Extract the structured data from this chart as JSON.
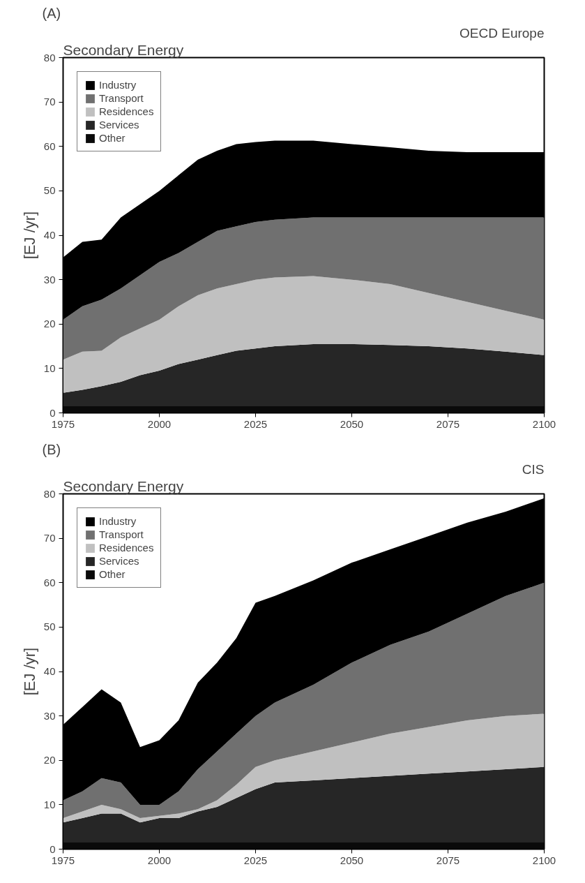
{
  "chart_data": [
    {
      "type": "area",
      "stacked": true,
      "title": "Secondary Energy",
      "subtitle": "OECD Europe",
      "annotations": [
        "(A)"
      ],
      "ylabel": "[EJ /yr]",
      "x": [
        1975,
        1980,
        1985,
        1990,
        1995,
        2000,
        2005,
        2010,
        2015,
        2020,
        2025,
        2030,
        2040,
        2050,
        2060,
        2070,
        2080,
        2090,
        2100
      ],
      "series": [
        {
          "name": "Other",
          "color": "#0a0a0a",
          "values": [
            1.5,
            1.5,
            1.5,
            1.5,
            1.5,
            1.5,
            1.5,
            1.5,
            1.5,
            1.5,
            1.5,
            1.5,
            1.5,
            1.5,
            1.5,
            1.5,
            1.5,
            1.5,
            1.5
          ]
        },
        {
          "name": "Services",
          "color": "#262626",
          "values": [
            3,
            3.7,
            4.5,
            5.5,
            7,
            8,
            9.5,
            10.5,
            11.5,
            12.5,
            13,
            13.5,
            14,
            14,
            13.8,
            13.5,
            13,
            12.3,
            11.5
          ]
        },
        {
          "name": "Residences",
          "color": "#c0c0c0",
          "values": [
            7.5,
            8.6,
            8,
            10,
            10.5,
            11.5,
            13,
            14.5,
            15,
            15,
            15.5,
            15.5,
            15.3,
            14.5,
            13.7,
            12,
            10.5,
            9.2,
            8
          ]
        },
        {
          "name": "Transport",
          "color": "#707070",
          "values": [
            9,
            10.2,
            11.5,
            11,
            12,
            13,
            12,
            12,
            13,
            13,
            13,
            13,
            13.2,
            14,
            15,
            17,
            19,
            21,
            23
          ]
        },
        {
          "name": "Industry",
          "color": "#000000",
          "values": [
            14,
            14.5,
            13.5,
            16,
            16,
            16,
            17.5,
            18.5,
            18,
            18.5,
            18,
            17.8,
            17.3,
            16.5,
            15.8,
            15,
            14.7,
            14.7,
            14.7
          ]
        }
      ],
      "xlim": [
        1975,
        2100
      ],
      "xticks": [
        1975,
        2000,
        2025,
        2050,
        2075,
        2100
      ],
      "ylim": [
        0,
        80
      ],
      "yticks": [
        0,
        10,
        20,
        30,
        40,
        50,
        60,
        70,
        80
      ],
      "grid": false,
      "legend": "top left"
    },
    {
      "type": "area",
      "stacked": true,
      "title": "Secondary Energy",
      "subtitle": "CIS",
      "annotations": [
        "(B)"
      ],
      "ylabel": "[EJ /yr]",
      "x": [
        1975,
        1980,
        1985,
        1990,
        1995,
        2000,
        2005,
        2010,
        2015,
        2020,
        2025,
        2030,
        2040,
        2050,
        2060,
        2070,
        2080,
        2090,
        2100
      ],
      "series": [
        {
          "name": "Other",
          "color": "#0a0a0a",
          "values": [
            1.5,
            1.5,
            1.5,
            1.5,
            1.5,
            1.5,
            1.5,
            1.5,
            1.5,
            1.5,
            1.5,
            1.5,
            1.5,
            1.5,
            1.5,
            1.5,
            1.5,
            1.5,
            1.5
          ]
        },
        {
          "name": "Services",
          "color": "#262626",
          "values": [
            4.5,
            5.5,
            6.5,
            6.5,
            4.5,
            5.5,
            5.5,
            7,
            8,
            10,
            12,
            13.5,
            14,
            14.5,
            15,
            15.5,
            16,
            16.5,
            17
          ]
        },
        {
          "name": "Residences",
          "color": "#c0c0c0",
          "values": [
            1,
            1.5,
            2,
            1,
            1,
            0.5,
            1,
            0.5,
            1.5,
            3,
            5,
            5,
            6.5,
            8,
            9.5,
            10.5,
            11.5,
            12,
            12
          ]
        },
        {
          "name": "Transport",
          "color": "#707070",
          "values": [
            4,
            4.5,
            6,
            6,
            3,
            2.5,
            5,
            9,
            11,
            11.5,
            11.5,
            13,
            15,
            18,
            20,
            21.5,
            24,
            27,
            29.5
          ]
        },
        {
          "name": "Industry",
          "color": "#000000",
          "values": [
            17,
            19,
            20,
            18,
            13,
            14.5,
            16,
            19.5,
            20,
            21.5,
            25.5,
            24,
            23.5,
            22.5,
            21.5,
            21.5,
            20.5,
            19,
            19
          ]
        }
      ],
      "xlim": [
        1975,
        2100
      ],
      "xticks": [
        1975,
        2000,
        2025,
        2050,
        2075,
        2100
      ],
      "ylim": [
        0,
        80
      ],
      "yticks": [
        0,
        10,
        20,
        30,
        40,
        50,
        60,
        70,
        80
      ],
      "grid": false,
      "legend": "top left"
    }
  ]
}
